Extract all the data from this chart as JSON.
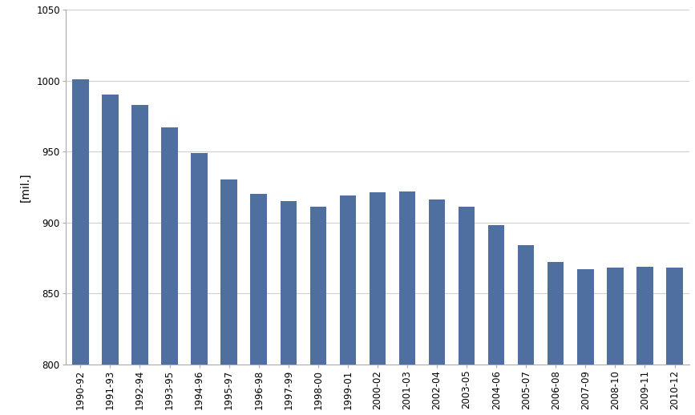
{
  "categories": [
    "1990-92",
    "1991-93",
    "1992-94",
    "1993-95",
    "1994-96",
    "1995-97",
    "1996-98",
    "1997-99",
    "1998-00",
    "1999-01",
    "2000-02",
    "2001-03",
    "2002-04",
    "2003-05",
    "2004-06",
    "2005-07",
    "2006-08",
    "2007-09",
    "2008-10",
    "2009-11",
    "2010-12"
  ],
  "values": [
    1001,
    990,
    983,
    967,
    949,
    930,
    920,
    915,
    911,
    919,
    921,
    922,
    916,
    911,
    898,
    884,
    872,
    867,
    868,
    869,
    868
  ],
  "bar_color": "#4f6fa0",
  "ylabel": "[mil.]",
  "ylim": [
    800,
    1050
  ],
  "yticks": [
    800,
    850,
    900,
    950,
    1000,
    1050
  ],
  "grid_color": "#d0d0d0",
  "background_color": "#ffffff",
  "tick_fontsize": 8.5,
  "ylabel_fontsize": 10,
  "bar_width": 0.55
}
